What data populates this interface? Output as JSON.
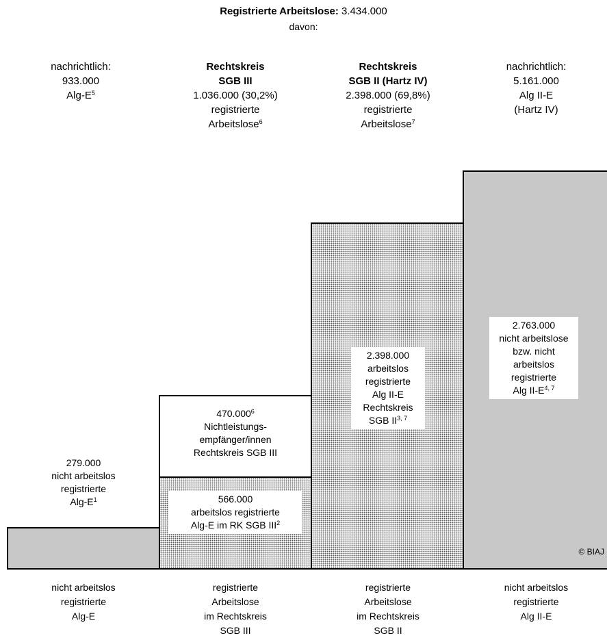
{
  "header": {
    "title_bold": "Registrierte Arbeitslose:",
    "title_value": "3.434.000",
    "subtitle": "davon:"
  },
  "columns": [
    {
      "line1": "nachrichtlich:",
      "line2": "933.000",
      "line3": "Alg-E",
      "sup": "5"
    },
    {
      "line1": "Rechtskreis",
      "line2": "SGB III",
      "line3": "1.036.000 (30,2%)",
      "line4": "registrierte",
      "line5": "Arbeitslose",
      "sup": "6"
    },
    {
      "line1": "Rechtskreis",
      "line2": "SGB II (Hartz IV)",
      "line3": "2.398.000 (69,8%)",
      "line4": "registrierte",
      "line5": "Arbeitslose",
      "sup": "7"
    },
    {
      "line1": "nachrichtlich:",
      "line2": "5.161.000",
      "line3": "Alg II-E",
      "line4": "(Hartz IV)"
    }
  ],
  "blocks": {
    "algE_nicht": {
      "value": 279000,
      "line1": "279.000",
      "line2": "nicht arbeitslos",
      "line3": "registrierte",
      "line4": "Alg-E",
      "sup": "1"
    },
    "nichtleistung": {
      "value": 470000,
      "line1": "470.000",
      "sup": "6",
      "line2": "Nichtleistungs-",
      "line3": "empfänger/innen",
      "line4": "Rechtskreis SGB III"
    },
    "algE_arbeitslos": {
      "value": 566000,
      "line1": "566.000",
      "line2": "arbeitslos registrierte",
      "line3": "Alg-E im RK SGB III",
      "sup": "2"
    },
    "algII_arbeitslos": {
      "value": 2398000,
      "line1": "2.398.000",
      "line2": "arbeitslos",
      "line3": "registrierte",
      "line4": "Alg II-E",
      "line5": "Rechtskreis",
      "line6": "SGB II",
      "sup": "3, 7"
    },
    "algII_nicht": {
      "value": 2763000,
      "line1": "2.763.000",
      "line2": "nicht arbeitslose",
      "line3": "bzw. nicht",
      "line4": "arbeitslos",
      "line5": "registrierte",
      "line6": "Alg II-E",
      "sup": "4, 7"
    }
  },
  "footer": [
    {
      "line1": "nicht arbeitslos",
      "line2": "registrierte",
      "line3": "Alg-E"
    },
    {
      "line1": "registrierte",
      "line2": "Arbeitslose",
      "line3": "im Rechtskreis",
      "line4": "SGB III"
    },
    {
      "line1": "registrierte",
      "line2": "Arbeitslose",
      "line3": "im Rechtskreis",
      "line4": "SGB II"
    },
    {
      "line1": "nicht arbeitslos",
      "line2": "registrierte",
      "line3": "Alg II-E"
    }
  ],
  "copyright": "© BIAJ",
  "colors": {
    "gray_fill": "#c8c8c8",
    "dot_fill": "#5a5a5a",
    "border": "#000000"
  }
}
